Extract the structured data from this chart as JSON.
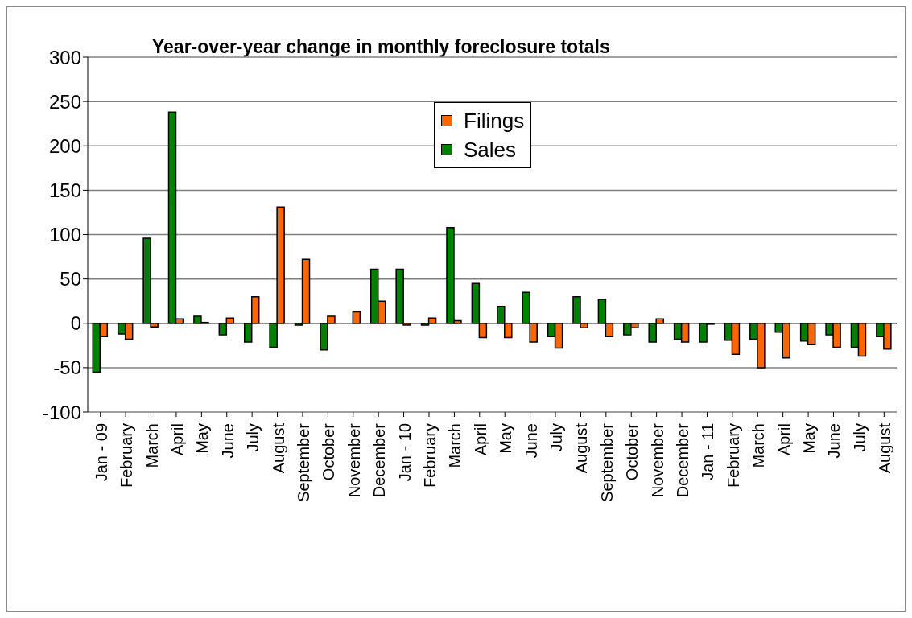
{
  "chart_data": {
    "type": "bar",
    "title": "Year-over-year change in monthly foreclosure totals",
    "categories": [
      "Jan - 09",
      "February",
      "March",
      "April",
      "May",
      "June",
      "July",
      "August",
      "September",
      "October",
      "November",
      "December",
      "Jan - 10",
      "February",
      "March",
      "April",
      "May",
      "June",
      "July",
      "August",
      "September",
      "October",
      "November",
      "December",
      "Jan - 11",
      "February",
      "March",
      "April",
      "May",
      "June",
      "July",
      "August"
    ],
    "series": [
      {
        "name": "Sales",
        "color": "#008000",
        "values": [
          -55,
          -12,
          96,
          238,
          8,
          -13,
          -21,
          -27,
          -2,
          -30,
          0,
          61,
          61,
          -2,
          108,
          45,
          19,
          35,
          -15,
          30,
          27,
          -13,
          -21,
          -18,
          -21,
          -19,
          -18,
          -10,
          -20,
          -13,
          -27,
          -15
        ]
      },
      {
        "name": "Filings",
        "color": "#ff6600",
        "values": [
          -15,
          -18,
          -4,
          5,
          1,
          6,
          30,
          131,
          72,
          8,
          13,
          25,
          -2,
          6,
          3,
          -16,
          -16,
          -21,
          -28,
          -5,
          -15,
          -5,
          5,
          -21,
          -1,
          -35,
          -50,
          -39,
          -24,
          -27,
          -37,
          -29
        ]
      }
    ],
    "ylim": [
      -100,
      300
    ],
    "yticks": [
      -100,
      -50,
      0,
      50,
      100,
      150,
      200,
      250,
      300
    ],
    "grid": "y",
    "legend": "top"
  }
}
